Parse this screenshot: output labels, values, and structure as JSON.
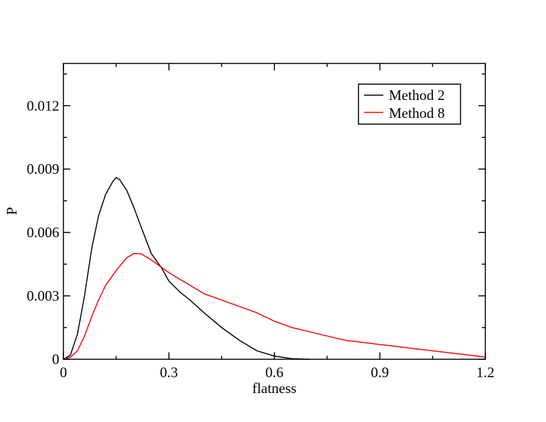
{
  "chart_data": {
    "type": "line",
    "xlabel": "flatness",
    "ylabel": "P",
    "xlim": [
      0,
      1.2
    ],
    "ylim": [
      0,
      0.014
    ],
    "xticks": [
      0,
      0.3,
      0.6,
      0.9,
      1.2
    ],
    "xtick_labels": [
      "0",
      "0.3",
      "0.6",
      "0.9",
      "1.2"
    ],
    "yticks": [
      0,
      0.003,
      0.006,
      0.009,
      0.012
    ],
    "ytick_labels": [
      "0",
      "0.003",
      "0.006",
      "0.009",
      "0.012"
    ],
    "grid": false,
    "legend_position": "top-right",
    "series": [
      {
        "name": "Method 2",
        "color": "#000000",
        "x": [
          0.0,
          0.02,
          0.04,
          0.06,
          0.08,
          0.1,
          0.12,
          0.14,
          0.15,
          0.16,
          0.18,
          0.2,
          0.22,
          0.25,
          0.28,
          0.3,
          0.33,
          0.36,
          0.4,
          0.45,
          0.5,
          0.55,
          0.6,
          0.65,
          0.7
        ],
        "y": [
          0.0,
          0.0002,
          0.0012,
          0.003,
          0.0052,
          0.0068,
          0.0078,
          0.0084,
          0.0086,
          0.0085,
          0.008,
          0.0072,
          0.0063,
          0.005,
          0.0043,
          0.0037,
          0.0032,
          0.0028,
          0.0022,
          0.0015,
          0.0009,
          0.0004,
          0.00015,
          3e-05,
          0.0
        ]
      },
      {
        "name": "Method 8",
        "color": "#ff0000",
        "x": [
          0.0,
          0.02,
          0.04,
          0.06,
          0.08,
          0.1,
          0.12,
          0.15,
          0.18,
          0.2,
          0.22,
          0.25,
          0.3,
          0.35,
          0.4,
          0.45,
          0.5,
          0.55,
          0.6,
          0.65,
          0.7,
          0.75,
          0.8,
          0.85,
          0.9,
          0.95,
          1.0,
          1.05,
          1.1,
          1.15,
          1.2
        ],
        "y": [
          0.0,
          0.0001,
          0.0004,
          0.0011,
          0.002,
          0.0028,
          0.0035,
          0.0042,
          0.0048,
          0.005,
          0.005,
          0.0047,
          0.0041,
          0.0036,
          0.0031,
          0.0028,
          0.0025,
          0.0022,
          0.0018,
          0.0015,
          0.0013,
          0.0011,
          0.0009,
          0.0008,
          0.0007,
          0.0006,
          0.0005,
          0.0004,
          0.0003,
          0.0002,
          0.0001
        ]
      }
    ]
  }
}
